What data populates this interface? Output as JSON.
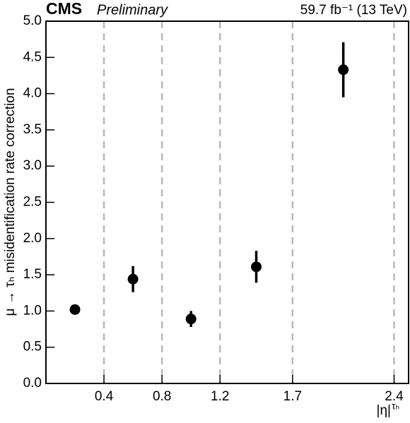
{
  "chart_data": {
    "type": "errorbar",
    "experiment": "CMS",
    "status": "Preliminary",
    "lumi_label": "59.7 fb⁻¹ (13 TeV)",
    "y_label": "μ → τₕ misidentification rate correction",
    "x_label": "|η|",
    "x_label_sup": "τₕ",
    "x": [
      0.2,
      0.6,
      1.0,
      1.45,
      2.05
    ],
    "series": [
      {
        "color": "#000000",
        "values": [
          1.02,
          1.44,
          0.89,
          1.61,
          4.33
        ],
        "errors": [
          0.06,
          0.18,
          0.11,
          0.22,
          0.38
        ]
      }
    ],
    "xlim": [
      0,
      2.5
    ],
    "xticks": [
      0.4,
      0.8,
      1.2,
      1.7,
      2.4
    ],
    "ylim": [
      0,
      5
    ],
    "yticks": [
      {
        "value": 0,
        "label": "0.0"
      },
      0.5,
      {
        "value": 1,
        "label": "1.0"
      },
      1.5,
      {
        "value": 2,
        "label": "2.0"
      },
      2.5,
      {
        "value": 3,
        "label": "3.0"
      },
      3.5,
      {
        "value": 4,
        "label": "4.0"
      },
      4.5,
      {
        "value": 5,
        "label": "5.0"
      }
    ],
    "grid": "x-dashed"
  }
}
